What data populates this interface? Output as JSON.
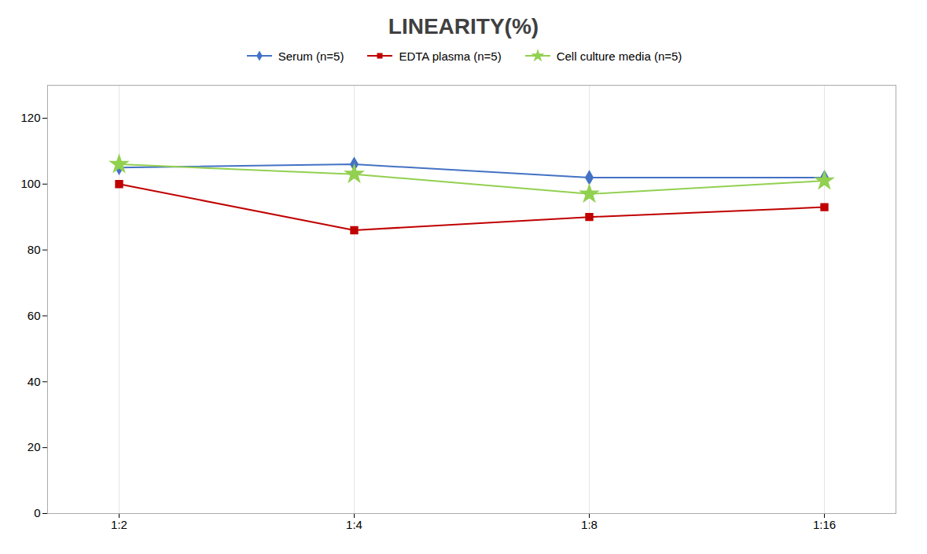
{
  "chart_data": {
    "type": "line",
    "title": "LINEARITY(%)",
    "categories": [
      "1:2",
      "1:4",
      "1:8",
      "1:16"
    ],
    "series": [
      {
        "name": "Serum (n=5)",
        "values": [
          105,
          106,
          102,
          102
        ],
        "color": "#4472C4",
        "marker": "diamond"
      },
      {
        "name": "EDTA plasma (n=5)",
        "values": [
          100,
          86,
          90,
          93
        ],
        "color": "#C00000",
        "marker": "square"
      },
      {
        "name": "Cell culture media (n=5)",
        "values": [
          106,
          103,
          97,
          101
        ],
        "color": "#92D050",
        "marker": "star"
      }
    ],
    "ylim": [
      0,
      130
    ],
    "yticks": [
      0,
      20,
      40,
      60,
      80,
      100,
      120
    ],
    "grid": "x",
    "legend": "top"
  }
}
